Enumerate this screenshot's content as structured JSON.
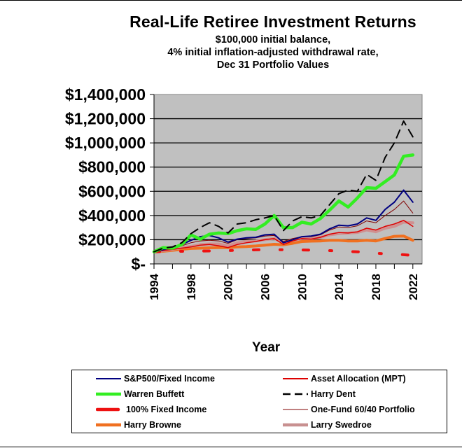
{
  "title": "Real-Life Retiree Investment Returns",
  "subtitle_lines": [
    "$100,000 initial balance,",
    "4% initial inflation-adjusted withdrawal rate,",
    "Dec 31 Portfolio Values"
  ],
  "chart_data": {
    "type": "line",
    "title": "Real-Life Retiree Investment Returns",
    "subtitle": "$100,000 initial balance, 4% initial inflation-adjusted withdrawal rate, Dec 31 Portfolio Values",
    "xlabel": "Year",
    "ylabel": "",
    "ylim": [
      0,
      1400000
    ],
    "xlim": [
      1994,
      2023
    ],
    "grid": true,
    "plot_background": "#c0c0c0",
    "legend_position": "bottom",
    "yticks": [
      0,
      200000,
      400000,
      600000,
      800000,
      1000000,
      1200000,
      1400000
    ],
    "ytick_labels": [
      "$-",
      "$200,000",
      "$400,000",
      "$600,000",
      "$800,000",
      "$1,000,000",
      "$1,200,000",
      "$1,400,000"
    ],
    "xtick_labels": [
      "1994",
      "1998",
      "2002",
      "2006",
      "2010",
      "2014",
      "2018",
      "2022"
    ],
    "x": [
      1994,
      1995,
      1996,
      1997,
      1998,
      1999,
      2000,
      2001,
      2002,
      2003,
      2004,
      2005,
      2006,
      2007,
      2008,
      2009,
      2010,
      2011,
      2012,
      2013,
      2014,
      2015,
      2016,
      2017,
      2018,
      2019,
      2020,
      2021,
      2022
    ],
    "series": [
      {
        "name": "Harry Browne",
        "color": "#f07020",
        "width": 4,
        "dash": "",
        "values": [
          100000,
          105000,
          112000,
          120000,
          128000,
          130000,
          133000,
          135000,
          135000,
          140000,
          143000,
          148000,
          155000,
          162000,
          158000,
          170000,
          185000,
          188000,
          190000,
          195000,
          195000,
          190000,
          190000,
          195000,
          190000,
          210000,
          228000,
          230000,
          195000
        ]
      },
      {
        "name": "Larry Swedroe",
        "color": "#d09090",
        "width": 4,
        "dash": "",
        "values": [
          100000,
          110000,
          120000,
          135000,
          145000,
          160000,
          165000,
          165000,
          150000,
          175000,
          185000,
          190000,
          200000,
          210000,
          175000,
          195000,
          210000,
          210000,
          220000,
          240000,
          250000,
          255000,
          260000,
          280000,
          265000,
          295000,
          310000,
          345000,
          340000
        ]
      },
      {
        "name": "100% Fixed Income",
        "color": "#ee1111",
        "width": 4,
        "dash": "8,30,3,30",
        "values": [
          100000,
          102000,
          103000,
          104000,
          105000,
          106000,
          107000,
          108000,
          110000,
          112000,
          114000,
          116000,
          118000,
          118000,
          117000,
          116000,
          115000,
          114000,
          112000,
          110000,
          107000,
          103000,
          100000,
          95000,
          88000,
          84000,
          80000,
          76000,
          70000
        ]
      },
      {
        "name": "One-Fund 60/40 Portfolio",
        "color": "#800000",
        "width": 1,
        "dash": "",
        "values": [
          100000,
          115000,
          130000,
          150000,
          175000,
          190000,
          195000,
          190000,
          170000,
          200000,
          210000,
          215000,
          230000,
          235000,
          185000,
          210000,
          225000,
          225000,
          240000,
          280000,
          305000,
          300000,
          315000,
          355000,
          340000,
          400000,
          450000,
          520000,
          420000
        ]
      },
      {
        "name": "Asset Allocation (MPT)",
        "color": "#dd0000",
        "width": 1.5,
        "dash": "",
        "values": [
          100000,
          110000,
          120000,
          130000,
          140000,
          155000,
          160000,
          150000,
          135000,
          160000,
          175000,
          185000,
          200000,
          210000,
          160000,
          190000,
          210000,
          205000,
          220000,
          245000,
          260000,
          255000,
          265000,
          295000,
          280000,
          310000,
          330000,
          360000,
          310000
        ]
      },
      {
        "name": "S&P500/Fixed Income",
        "color": "#000080",
        "width": 2,
        "dash": "",
        "values": [
          100000,
          118000,
          135000,
          160000,
          195000,
          225000,
          235000,
          215000,
          180000,
          205000,
          215000,
          220000,
          240000,
          245000,
          175000,
          200000,
          225000,
          230000,
          245000,
          290000,
          320000,
          315000,
          330000,
          380000,
          360000,
          450000,
          510000,
          610000,
          510000
        ]
      },
      {
        "name": "Warren Buffett",
        "color": "#33ee22",
        "width": 4.5,
        "dash": "",
        "values": [
          100000,
          135000,
          130000,
          160000,
          240000,
          205000,
          245000,
          255000,
          250000,
          275000,
          290000,
          285000,
          330000,
          400000,
          300000,
          300000,
          345000,
          330000,
          375000,
          445000,
          520000,
          470000,
          545000,
          630000,
          625000,
          680000,
          735000,
          890000,
          900000
        ]
      },
      {
        "name": "Harry Dent",
        "color": "#000000",
        "width": 2,
        "dash": "12,8",
        "values": [
          100000,
          130000,
          140000,
          175000,
          250000,
          300000,
          340000,
          310000,
          255000,
          330000,
          340000,
          365000,
          380000,
          400000,
          275000,
          355000,
          390000,
          380000,
          400000,
          490000,
          580000,
          610000,
          600000,
          740000,
          690000,
          880000,
          1000000,
          1180000,
          1050000
        ]
      }
    ]
  },
  "xaxis": {
    "label": "Year"
  },
  "legend": {
    "items": [
      {
        "label": "S&P500/Fixed Income",
        "color": "#000080",
        "style": "thin"
      },
      {
        "label": "Asset Allocation (MPT)",
        "color": "#dd0000",
        "style": "thin"
      },
      {
        "label": "Warren Buffett",
        "color": "#33ee22",
        "style": "thick"
      },
      {
        "label": "Harry Dent",
        "color": "#000000",
        "style": "dash"
      },
      {
        "label": "100% Fixed Income",
        "color": "#ee1111",
        "style": "thick"
      },
      {
        "label": "One-Fund 60/40 Portfolio",
        "color": "#800000",
        "style": "hair"
      },
      {
        "label": "Harry Browne",
        "color": "#f07020",
        "style": "thick"
      },
      {
        "label": "Larry Swedroe",
        "color": "#c89090",
        "style": "thick"
      }
    ]
  }
}
